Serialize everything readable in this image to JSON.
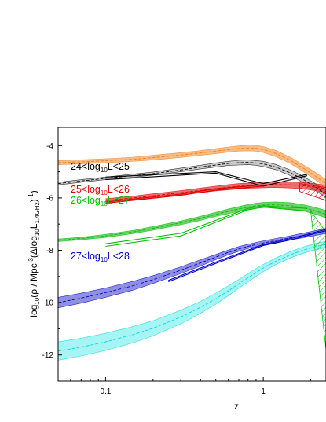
{
  "chart_data": {
    "type": "line",
    "xlabel": "z",
    "ylabel_parts": [
      "log",
      "10",
      "(ρ / Mpc",
      "-3",
      "(Δlog",
      "10",
      "L",
      "1.4GHz",
      ")",
      "-1",
      ")"
    ],
    "x_scale": "log",
    "xlim": [
      0.05,
      2.5
    ],
    "ylim": [
      -13,
      -3.3
    ],
    "x_ticks": [
      0.1,
      1
    ],
    "x_tick_labels": [
      "0.1",
      "1"
    ],
    "y_ticks": [
      -4,
      -6,
      -8,
      -10,
      -12
    ],
    "y_tick_labels": [
      "-4",
      "-6",
      "-8",
      "-10",
      "-12"
    ],
    "bins": [
      {
        "label_parts": [
          "24<log",
          "10",
          "L<25"
        ],
        "color": "#000000",
        "band_color": "#b4b4b4",
        "band_x": [
          0.05,
          0.07,
          0.1,
          0.15,
          0.2,
          0.3,
          0.4,
          0.5,
          0.6,
          0.7,
          0.8,
          0.9,
          1.0,
          1.2,
          1.5,
          1.8,
          2.1,
          2.5
        ],
        "band_mid": [
          -5.45,
          -5.35,
          -5.25,
          -5.15,
          -5.07,
          -4.93,
          -4.82,
          -4.74,
          -4.68,
          -4.65,
          -4.64,
          -4.66,
          -4.7,
          -4.82,
          -5.05,
          -5.3,
          -5.55,
          -5.85
        ],
        "band_half": [
          0.05,
          0.05,
          0.05,
          0.06,
          0.06,
          0.07,
          0.07,
          0.08,
          0.08,
          0.09,
          0.09,
          0.09,
          0.1,
          0.1,
          0.11,
          0.12,
          0.13,
          0.14
        ],
        "obs_x": [
          0.1,
          0.5,
          1.0,
          1.9
        ],
        "obs_upper": [
          -5.2,
          -5.0,
          -5.45,
          -5.1
        ],
        "obs_lower": [
          -5.3,
          -5.05,
          -5.55,
          -5.15
        ]
      },
      {
        "label_parts": [
          "25<log",
          "10",
          "L<26"
        ],
        "color": "#e00000",
        "band_color": "#e03030",
        "band_x": [
          0.1,
          0.15,
          0.2,
          0.3,
          0.4,
          0.5,
          0.6,
          0.7,
          0.8,
          1.0,
          1.2,
          1.5,
          1.8,
          2.1,
          2.5
        ],
        "band_mid": [
          -6.1,
          -6.0,
          -5.92,
          -5.8,
          -5.71,
          -5.64,
          -5.59,
          -5.55,
          -5.53,
          -5.5,
          -5.49,
          -5.5,
          -5.53,
          -5.58,
          -5.65
        ],
        "band_half": [
          0.07,
          0.07,
          0.08,
          0.08,
          0.09,
          0.09,
          0.1,
          0.1,
          0.1,
          0.11,
          0.11,
          0.12,
          0.12,
          0.13,
          0.14
        ],
        "obs_x": [
          0.1,
          0.3,
          0.5,
          1.0
        ],
        "obs_upper": [
          -6.15,
          -5.85,
          -5.65,
          -5.5
        ],
        "obs_lower": [
          -6.2,
          -5.9,
          -5.7,
          -5.55
        ]
      },
      {
        "label_parts": [
          "26<log",
          "10",
          "L<27"
        ],
        "color": "#00c000",
        "band_color": "#30c030",
        "band_x": [
          0.05,
          0.07,
          0.1,
          0.15,
          0.2,
          0.3,
          0.4,
          0.5,
          0.6,
          0.7,
          0.8,
          0.9,
          1.0,
          1.2,
          1.5,
          1.8,
          2.1,
          2.5
        ],
        "band_mid": [
          -7.62,
          -7.55,
          -7.45,
          -7.3,
          -7.16,
          -6.95,
          -6.78,
          -6.63,
          -6.51,
          -6.42,
          -6.35,
          -6.3,
          -6.27,
          -6.26,
          -6.3,
          -6.38,
          -6.48,
          -6.62
        ],
        "band_half": [
          0.05,
          0.05,
          0.06,
          0.06,
          0.07,
          0.07,
          0.08,
          0.08,
          0.09,
          0.09,
          0.1,
          0.1,
          0.1,
          0.11,
          0.12,
          0.12,
          0.13,
          0.14
        ],
        "obs_x": [
          0.1,
          0.3,
          0.8,
          1.0,
          1.9
        ],
        "obs_upper": [
          -7.75,
          -7.35,
          -6.4,
          -6.3,
          -6.4
        ],
        "obs_lower": [
          -7.85,
          -7.45,
          -6.45,
          -6.35,
          -6.5
        ]
      },
      {
        "label_parts": [
          "27<log",
          "10",
          "L<28"
        ],
        "color": "#0000c8",
        "band_color": "#6060d8",
        "band_x": [
          0.05,
          0.07,
          0.1,
          0.15,
          0.2,
          0.3,
          0.4,
          0.5,
          0.6,
          0.7,
          0.8,
          0.9,
          1.0,
          1.2,
          1.5,
          1.8,
          2.1,
          2.5
        ],
        "band_mid": [
          -10.0,
          -9.83,
          -9.62,
          -9.35,
          -9.12,
          -8.76,
          -8.48,
          -8.26,
          -8.08,
          -7.95,
          -7.85,
          -7.78,
          -7.72,
          -7.63,
          -7.52,
          -7.43,
          -7.35,
          -7.26
        ],
        "band_half": [
          0.2,
          0.19,
          0.18,
          0.17,
          0.15,
          0.13,
          0.12,
          0.1,
          0.09,
          0.09,
          0.08,
          0.08,
          0.08,
          0.08,
          0.08,
          0.09,
          0.09,
          0.1
        ],
        "obs_x": [
          0.25,
          0.5,
          1.0,
          1.5,
          2.5
        ],
        "obs_upper": [
          -9.15,
          -8.45,
          -7.78,
          -7.55,
          -7.2
        ],
        "obs_lower": [
          -9.2,
          -8.5,
          -7.82,
          -7.6,
          -7.25
        ]
      },
      {
        "label_parts": [],
        "color": "#00d8d8",
        "band_color": "#80f0f0",
        "band_x": [
          0.05,
          0.07,
          0.1,
          0.15,
          0.2,
          0.3,
          0.4,
          0.5,
          0.6,
          0.7,
          0.8,
          0.9,
          1.0,
          1.2,
          1.5,
          1.8,
          2.1,
          2.5
        ],
        "band_mid": [
          -11.85,
          -11.7,
          -11.5,
          -11.22,
          -10.98,
          -10.55,
          -10.18,
          -9.85,
          -9.55,
          -9.28,
          -9.05,
          -8.85,
          -8.68,
          -8.42,
          -8.16,
          -7.99,
          -7.87,
          -7.78
        ],
        "band_half": [
          0.35,
          0.34,
          0.33,
          0.31,
          0.29,
          0.26,
          0.23,
          0.21,
          0.19,
          0.17,
          0.16,
          0.15,
          0.14,
          0.13,
          0.12,
          0.12,
          0.12,
          0.12
        ],
        "obs_x": [],
        "obs_upper": [],
        "obs_lower": []
      },
      {
        "label_parts": [],
        "color": "#f08020",
        "band_color": "#f5a050",
        "band_x": [
          0.05,
          0.07,
          0.1,
          0.15,
          0.2,
          0.3,
          0.4,
          0.5,
          0.6,
          0.7,
          0.8,
          0.9,
          1.0,
          1.2,
          1.5,
          1.8,
          2.1,
          2.5
        ],
        "band_mid": [
          -4.65,
          -4.62,
          -4.58,
          -4.52,
          -4.46,
          -4.36,
          -4.28,
          -4.21,
          -4.15,
          -4.11,
          -4.09,
          -4.1,
          -4.15,
          -4.3,
          -4.58,
          -4.87,
          -5.13,
          -5.45
        ],
        "band_half": [
          0.08,
          0.08,
          0.08,
          0.08,
          0.09,
          0.09,
          0.09,
          0.1,
          0.1,
          0.1,
          0.11,
          0.11,
          0.11,
          0.12,
          0.12,
          0.13,
          0.14,
          0.15
        ],
        "obs_x": [],
        "obs_upper": [],
        "obs_lower": []
      }
    ],
    "hatched_regions": [
      {
        "color": "#e00000",
        "x": [
          1.7,
          2.5,
          2.5,
          1.7
        ],
        "y": [
          -5.45,
          -5.6,
          -6.1,
          -5.75
        ]
      },
      {
        "color": "#00c000",
        "x": [
          2.0,
          2.5,
          2.5
        ],
        "y": [
          -6.5,
          -7.3,
          -11.8
        ]
      }
    ]
  }
}
